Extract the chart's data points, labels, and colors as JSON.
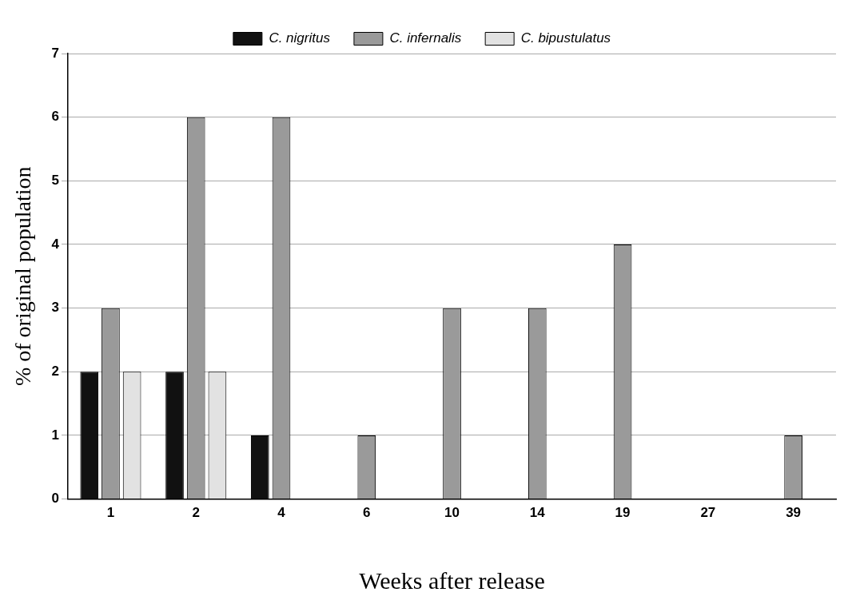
{
  "chart_data": {
    "type": "bar",
    "xlabel": "Weeks after release",
    "ylabel": "% of original population",
    "categories": [
      "1",
      "2",
      "4",
      "6",
      "10",
      "14",
      "19",
      "27",
      "39"
    ],
    "series": [
      {
        "name": "C. nigritus",
        "color": "#111111",
        "values": [
          2,
          2,
          1,
          0,
          0,
          0,
          0,
          0,
          0
        ]
      },
      {
        "name": "C. infernalis",
        "color": "#9a9a9a",
        "values": [
          3,
          6,
          6,
          1,
          3,
          3,
          4,
          0,
          1
        ]
      },
      {
        "name": "C. bipustulatus",
        "color": "#e2e2e2",
        "values": [
          2,
          2,
          0,
          0,
          0,
          0,
          0,
          0,
          0
        ]
      }
    ],
    "ylim": [
      0,
      7
    ],
    "yticks": [
      0,
      1,
      2,
      3,
      4,
      5,
      6,
      7
    ],
    "grid": "y",
    "legend": "top"
  }
}
